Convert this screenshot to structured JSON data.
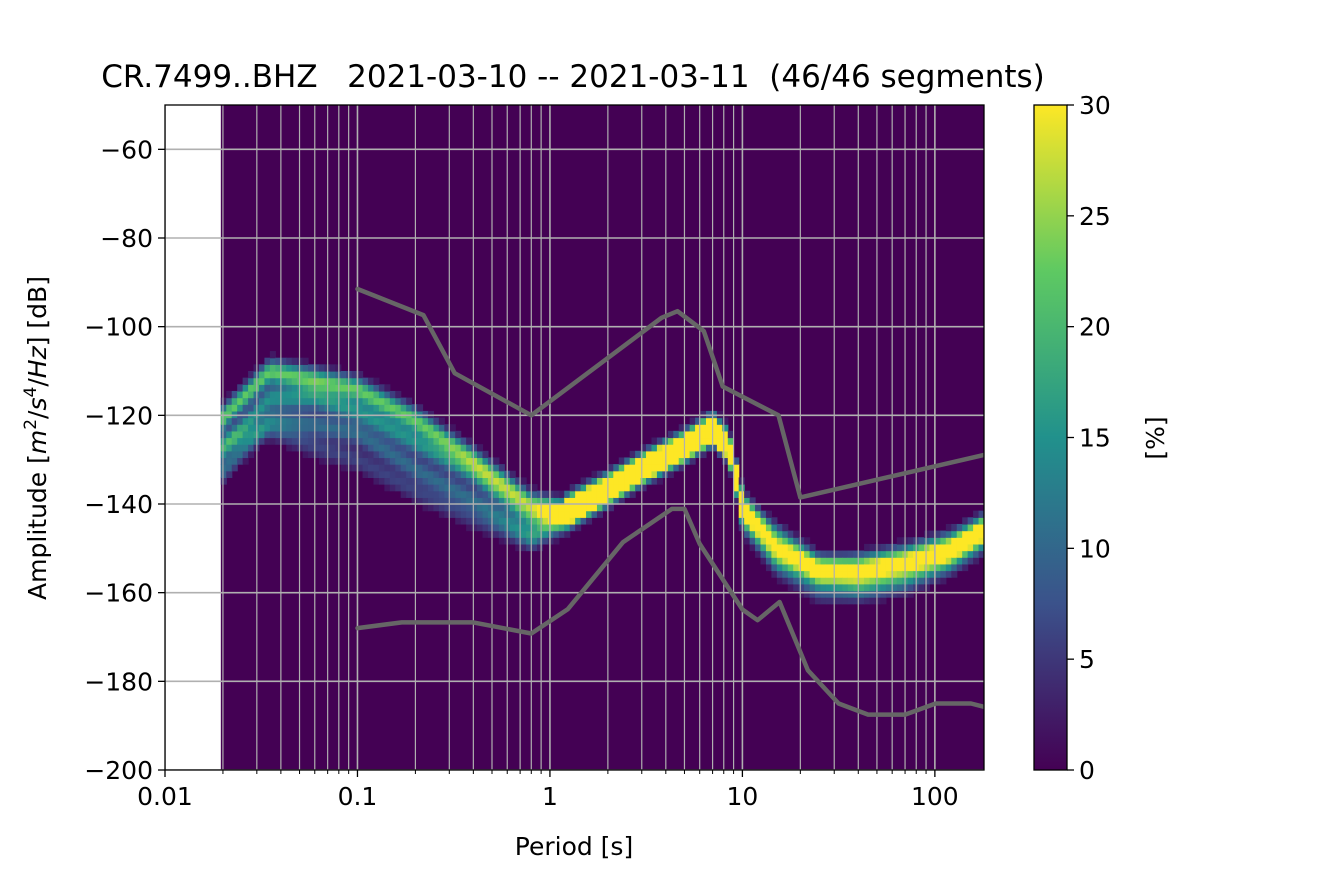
{
  "chart_data": {
    "type": "heatmap",
    "title": "CR.7499..BHZ   2021-03-10 -- 2021-03-11  (46/46 segments)",
    "xlabel": "Period [s]",
    "ylabel_parts": [
      "Amplitude [",
      "m",
      "2",
      "/",
      "s",
      "4",
      "/",
      "Hz",
      "] [dB]"
    ],
    "x_scale": "log",
    "xlim": [
      0.01,
      180
    ],
    "ylim": [
      -200,
      -50
    ],
    "grid": true,
    "data_start_period": 0.0195,
    "x_ticks": [
      {
        "value": 0.01,
        "label": "0.01"
      },
      {
        "value": 0.1,
        "label": "0.1"
      },
      {
        "value": 1,
        "label": "1"
      },
      {
        "value": 10,
        "label": "10"
      },
      {
        "value": 100,
        "label": "100"
      }
    ],
    "y_ticks": [
      {
        "value": -60,
        "label": "−60"
      },
      {
        "value": -80,
        "label": "−80"
      },
      {
        "value": -100,
        "label": "−100"
      },
      {
        "value": -120,
        "label": "−120"
      },
      {
        "value": -140,
        "label": "−140"
      },
      {
        "value": -160,
        "label": "−160"
      },
      {
        "value": -180,
        "label": "−180"
      },
      {
        "value": -200,
        "label": "−200"
      }
    ],
    "colorbar": {
      "label": "[%]",
      "range": [
        0,
        30
      ],
      "colormap": [
        "#440154",
        "#3b528b",
        "#21918c",
        "#5ec962",
        "#fde725"
      ],
      "ticks": [
        {
          "value": 0,
          "label": "0"
        },
        {
          "value": 5,
          "label": "5"
        },
        {
          "value": 10,
          "label": "10"
        },
        {
          "value": 15,
          "label": "15"
        },
        {
          "value": 20,
          "label": "20"
        },
        {
          "value": 25,
          "label": "25"
        },
        {
          "value": 30,
          "label": "30"
        }
      ]
    },
    "series": [
      {
        "role": "high-noise-model",
        "color": "#666666",
        "x": [
          0.1,
          0.22,
          0.32,
          0.8,
          3.8,
          4.6,
          6.3,
          7.9,
          15.4,
          20.0,
          354.8
        ],
        "y": [
          -91.5,
          -97.4,
          -110.5,
          -120.0,
          -98.0,
          -96.5,
          -101.0,
          -113.5,
          -120.0,
          -138.5,
          -126.0
        ]
      },
      {
        "role": "low-noise-model",
        "color": "#666666",
        "x": [
          0.1,
          0.17,
          0.4,
          0.8,
          1.24,
          2.4,
          4.3,
          5.0,
          6.0,
          10.0,
          12.0,
          15.6,
          21.9,
          31.6,
          45.0,
          70.0,
          101.0,
          154.0,
          181.0
        ],
        "y": [
          -168.0,
          -166.7,
          -166.7,
          -169.2,
          -163.7,
          -148.6,
          -141.1,
          -141.1,
          -149.0,
          -163.8,
          -166.2,
          -162.1,
          -177.5,
          -185.0,
          -187.5,
          -187.5,
          -185.0,
          -185.0,
          -185.8
        ]
      }
    ],
    "density_bands": [
      {
        "x": [
          0.0195,
          0.035,
          0.06,
          0.1,
          0.2,
          0.4,
          0.8,
          1.2,
          2.0,
          3.0,
          5.0,
          7.0,
          8.5,
          10.0,
          15.0,
          25.0,
          40.0,
          70.0,
          120.0,
          180.0
        ],
        "y": [
          -121,
          -110,
          -112,
          -114,
          -121,
          -130,
          -140,
          -142,
          -137,
          -132,
          -127,
          -123,
          -127,
          -140,
          -150,
          -155,
          -154,
          -152,
          -149,
          -145
        ],
        "weight": 0.75
      },
      {
        "x": [
          0.0195,
          0.035,
          0.06,
          0.1,
          0.2,
          0.4,
          0.8,
          1.2,
          2.0,
          3.0,
          5.0,
          7.0,
          8.5,
          10.0,
          15.0,
          25.0,
          40.0,
          70.0,
          120.0,
          180.0
        ],
        "y": [
          -128,
          -116,
          -116,
          -119,
          -126,
          -133,
          -143,
          -142,
          -137,
          -132,
          -127,
          -123,
          -127,
          -141,
          -147,
          -154,
          -156,
          -154,
          -151,
          -146
        ],
        "weight": 0.5
      },
      {
        "x": [
          0.0195,
          0.035,
          0.06,
          0.1,
          0.2,
          0.4,
          0.8,
          1.2,
          2.0,
          3.0,
          5.0,
          7.0,
          8.5,
          10.0,
          15.0,
          25.0,
          40.0,
          70.0,
          120.0,
          180.0
        ],
        "y": [
          -133,
          -121,
          -122,
          -124,
          -132,
          -139,
          -147,
          -143,
          -137,
          -132,
          -127,
          -123,
          -127,
          -143,
          -152,
          -157,
          -158,
          -156,
          -152,
          -147
        ],
        "weight": 0.35
      },
      {
        "x": [
          0.0195,
          0.035,
          0.06,
          0.1,
          0.2,
          0.4,
          0.8,
          1.2,
          2.0,
          3.0,
          5.0,
          7.0,
          8.5,
          10.0,
          15.0,
          25.0,
          40.0,
          70.0,
          120.0,
          180.0
        ],
        "y": [
          -126,
          -123,
          -127,
          -130,
          -137,
          -143,
          -148,
          -144,
          -137,
          -132,
          -127,
          -123,
          -127,
          -144,
          -154,
          -160,
          -160,
          -158,
          -154,
          -149
        ],
        "weight": 0.2
      },
      {
        "x": [
          1.2,
          2.0,
          3.0,
          5.0,
          7.0,
          8.5,
          10.0
        ],
        "y": [
          -141,
          -136,
          -132,
          -127,
          -123,
          -127,
          -140
        ],
        "weight": 1.0
      }
    ]
  }
}
